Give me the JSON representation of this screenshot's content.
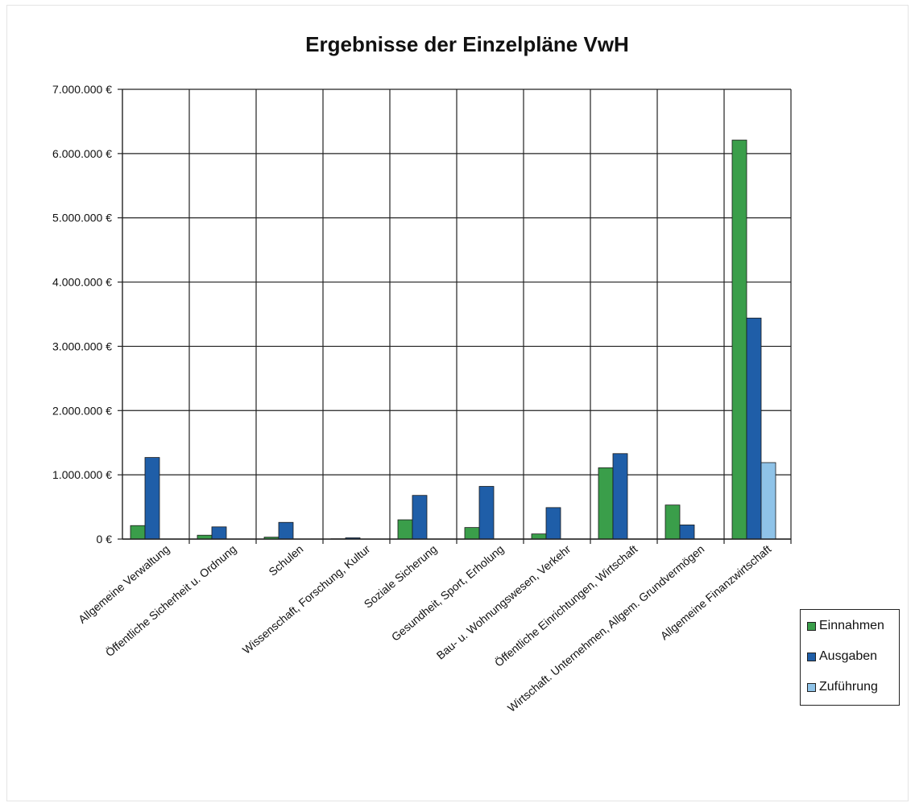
{
  "chart_data": {
    "type": "bar",
    "title": "Ergebnisse der Einzelpläne VwH",
    "xlabel": "",
    "ylabel": "",
    "ylim": [
      0,
      7000000
    ],
    "yticks": [
      0,
      1000000,
      2000000,
      3000000,
      4000000,
      5000000,
      6000000,
      7000000
    ],
    "ytick_labels": [
      "0 €",
      "1.000.000 €",
      "2.000.000 €",
      "3.000.000 €",
      "4.000.000 €",
      "5.000.000 €",
      "6.000.000 €",
      "7.000.000 €"
    ],
    "grid": true,
    "legend_position": "right",
    "categories": [
      "Allgemeine Verwaltung",
      "Öffentliche Sicherheit u. Ordnung",
      "Schulen",
      "Wissenschaft, Forschung, Kultur",
      "Soziale Sicherung",
      "Gesundheit, Sport, Erholung",
      "Bau- u. Wohnungswesen, Verkehr",
      "Öffentliche Einrichtungen, Wirtschaft",
      "Wirtschaft. Unternehmen, Allgem. Grundvermögen",
      "Allgemeine Finanzwirtschaft"
    ],
    "series": [
      {
        "name": "Einnahmen",
        "color": "#3a9e4a",
        "values": [
          210000,
          60000,
          30000,
          5000,
          300000,
          180000,
          80000,
          1110000,
          530000,
          6210000
        ]
      },
      {
        "name": "Ausgaben",
        "color": "#1f5ea8",
        "values": [
          1270000,
          190000,
          260000,
          20000,
          680000,
          820000,
          490000,
          1330000,
          220000,
          3440000
        ]
      },
      {
        "name": "Zuführung",
        "color": "#8fc3e8",
        "values": [
          0,
          0,
          0,
          0,
          0,
          0,
          0,
          0,
          0,
          1190000
        ]
      }
    ]
  }
}
